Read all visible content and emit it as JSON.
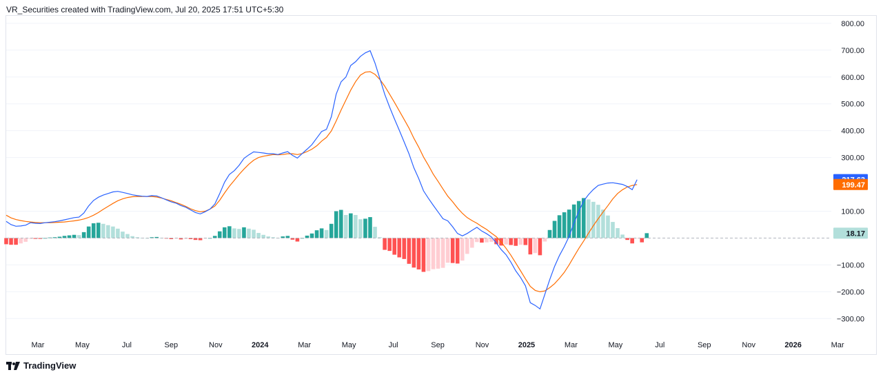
{
  "header": {
    "text": "VR_Securities created with TradingView.com, Jul 20, 2025 17:51 UTC+5:30"
  },
  "footer": {
    "brand": "TradingView"
  },
  "colors": {
    "macd": "#2962ff",
    "signal": "#ff6d00",
    "hist_up_strong": "#26a69a",
    "hist_up_weak": "#b2dfdb",
    "hist_down_strong": "#ff5252",
    "hist_down_weak": "#ffcdd2",
    "zero_line": "#b2b5be",
    "grid": "#f0f3fa"
  },
  "chart_data": {
    "type": "line",
    "title": "",
    "xlabel": "",
    "ylabel": "",
    "ylim": [
      -330,
      820
    ],
    "y_ticks": [
      {
        "value": 800,
        "label": "800.00"
      },
      {
        "value": 700,
        "label": "700.00"
      },
      {
        "value": 600,
        "label": "600.00"
      },
      {
        "value": 500,
        "label": "500.00"
      },
      {
        "value": 400,
        "label": "400.00"
      },
      {
        "value": 300,
        "label": "300.00"
      },
      {
        "value": 100,
        "label": "100.00"
      },
      {
        "value": -100,
        "label": "−100.00"
      },
      {
        "value": -200,
        "label": "−200.00"
      },
      {
        "value": -300,
        "label": "−300.00"
      }
    ],
    "x_ticks": [
      {
        "label": "Mar",
        "bold": false
      },
      {
        "label": "May",
        "bold": false
      },
      {
        "label": "Jul",
        "bold": false
      },
      {
        "label": "Sep",
        "bold": false
      },
      {
        "label": "Nov",
        "bold": false
      },
      {
        "label": "2024",
        "bold": true
      },
      {
        "label": "Mar",
        "bold": false
      },
      {
        "label": "May",
        "bold": false
      },
      {
        "label": "Jul",
        "bold": false
      },
      {
        "label": "Sep",
        "bold": false
      },
      {
        "label": "Nov",
        "bold": false
      },
      {
        "label": "2025",
        "bold": true
      },
      {
        "label": "Mar",
        "bold": false
      },
      {
        "label": "May",
        "bold": false
      },
      {
        "label": "Jul",
        "bold": false
      },
      {
        "label": "Sep",
        "bold": false
      },
      {
        "label": "Nov",
        "bold": false
      },
      {
        "label": "2026",
        "bold": true
      },
      {
        "label": "Mar",
        "bold": false
      }
    ],
    "series": [
      {
        "values": [
          62,
          50,
          44,
          45,
          48,
          57,
          55,
          54,
          57,
          59,
          61,
          64,
          68,
          72,
          76,
          78,
          93,
          120,
          140,
          152,
          160,
          166,
          172,
          174,
          170,
          166,
          161,
          158,
          156,
          155,
          158,
          157,
          150,
          142,
          135,
          130,
          121,
          115,
          105,
          95,
          90,
          98,
          108,
          127,
          166,
          208,
          237,
          251,
          271,
          297,
          310,
          321,
          319,
          317,
          314,
          314,
          311,
          317,
          322,
          308,
          298,
          315,
          331,
          348,
          373,
          397,
          405,
          452,
          536,
          582,
          600,
          643,
          657,
          677,
          690,
          698,
          652,
          594,
          536,
          488,
          444,
          402,
          358,
          314,
          262,
          222,
          176,
          148,
          122,
          97,
          72,
          64,
          42,
          17,
          8,
          17,
          29,
          40,
          26,
          16,
          4,
          -18,
          -43,
          -62,
          -90,
          -122,
          -147,
          -178,
          -241,
          -251,
          -264,
          -210,
          -155,
          -106,
          -65,
          -32,
          6,
          56,
          99,
          138,
          162,
          181,
          196,
          201,
          205,
          206,
          203,
          200,
          192,
          180,
          217.63
        ]
      },
      {
        "values": [
          85,
          75,
          69,
          65,
          62,
          60,
          58,
          57,
          57,
          57,
          58,
          59,
          60,
          62,
          64,
          67,
          71,
          77,
          85,
          95,
          107,
          118,
          129,
          139,
          146,
          151,
          154,
          155,
          155,
          155,
          155,
          153,
          149,
          144,
          139,
          132,
          126,
          118,
          109,
          102,
          98,
          100,
          108,
          119,
          141,
          168,
          193,
          215,
          237,
          257,
          275,
          290,
          300,
          305,
          308,
          311,
          310,
          311,
          314,
          314,
          311,
          315,
          322,
          331,
          344,
          361,
          375,
          399,
          436,
          477,
          514,
          551,
          583,
          607,
          618,
          620,
          610,
          591,
          566,
          536,
          506,
          474,
          442,
          410,
          372,
          339,
          302,
          271,
          238,
          211,
          183,
          156,
          135,
          112,
          92,
          76,
          65,
          55,
          43,
          32,
          18,
          5,
          -15,
          -38,
          -64,
          -93,
          -122,
          -152,
          -180,
          -195,
          -200,
          -197,
          -185,
          -170,
          -150,
          -128,
          -100,
          -69,
          -39,
          -11,
          18,
          46,
          72,
          97,
          121,
          146,
          166,
          180,
          190,
          196,
          199.47
        ]
      }
    ],
    "histogram": [
      -23,
      -25,
      -25,
      -20,
      -14,
      -3,
      -3,
      -3,
      0,
      2,
      3,
      5,
      8,
      10,
      12,
      11,
      22,
      43,
      55,
      57,
      53,
      48,
      43,
      35,
      24,
      15,
      7,
      3,
      1,
      0,
      3,
      4,
      1,
      -2,
      -4,
      -2,
      -5,
      -3,
      -4,
      -7,
      -8,
      -2,
      0,
      8,
      25,
      40,
      44,
      36,
      34,
      40,
      35,
      31,
      19,
      12,
      6,
      3,
      1,
      6,
      8,
      -6,
      -13,
      0,
      9,
      17,
      29,
      36,
      30,
      53,
      100,
      105,
      86,
      92,
      86,
      70,
      72,
      78,
      42,
      3,
      -44,
      -48,
      -62,
      -72,
      -78,
      -96,
      -110,
      -117,
      -126,
      -123,
      -116,
      -114,
      -111,
      -92,
      -93,
      -95,
      -84,
      -59,
      -36,
      -15,
      -17,
      -16,
      -14,
      -23,
      -28,
      -24,
      -26,
      -29,
      -25,
      -26,
      -61,
      -56,
      -64,
      -13,
      30,
      64,
      85,
      96,
      106,
      125,
      138,
      149,
      144,
      135,
      124,
      106,
      84,
      60,
      37,
      13,
      -7,
      -20,
      -2,
      -16,
      18.17
    ],
    "last_values": {
      "macd": "217.63",
      "signal": "199.47",
      "histogram": "18.17"
    }
  }
}
